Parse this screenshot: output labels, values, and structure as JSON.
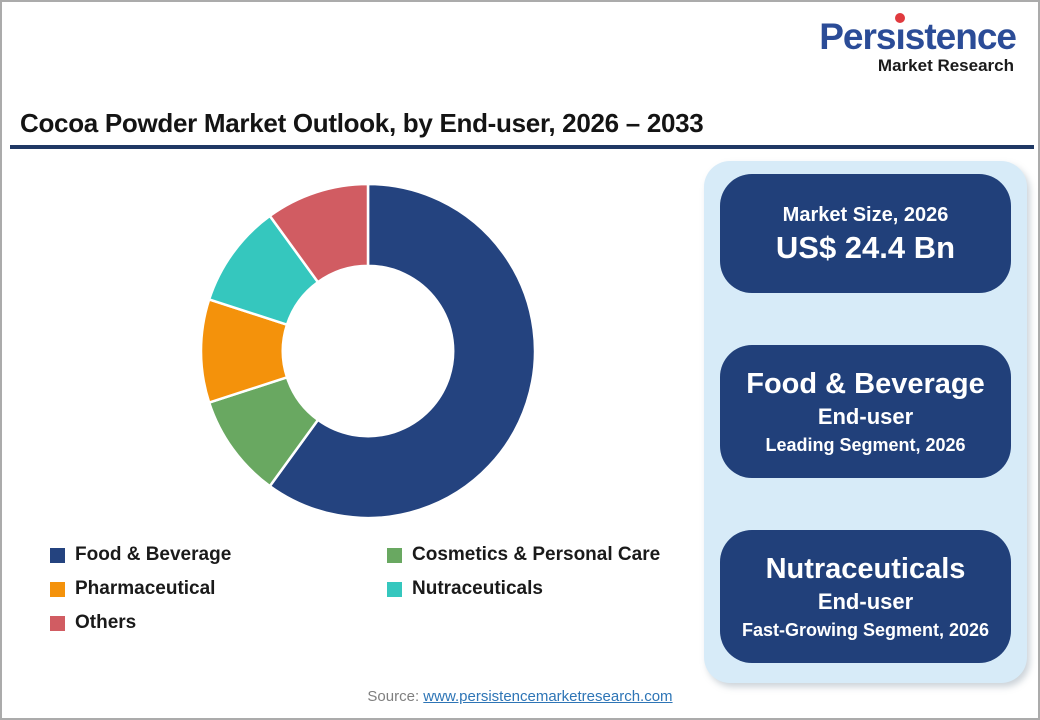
{
  "logo": {
    "name": "Persistence",
    "subtitle": "Market Research",
    "name_color": "#2b4c97",
    "dot_color": "#e03a3e"
  },
  "title": {
    "text": "Cocoa Powder Market Outlook, by End-user, 2026 – 2033",
    "underline_color": "#1f3864"
  },
  "chart_data": {
    "type": "pie",
    "subtype": "donut",
    "title": "Cocoa Powder Market Outlook, by End-user, 2026 – 2033",
    "categories": [
      "Food & Beverage",
      "Cosmetics & Personal Care",
      "Pharmaceutical",
      "Nutraceuticals",
      "Others"
    ],
    "values": [
      60,
      10,
      10,
      10,
      10
    ],
    "values_note": "share of ring estimated from arc angles (%)",
    "colors": [
      "#24437f",
      "#69a861",
      "#f4920b",
      "#35c7be",
      "#d15c62"
    ],
    "start_angle_deg": 0,
    "direction": "clockwise",
    "inner_radius_ratio": 0.51,
    "separator_color": "#ffffff",
    "legend_position": "bottom-left"
  },
  "panel": {
    "bg_color": "#d7ebf8",
    "card_color": "#21407a",
    "cards": [
      {
        "line1": "Market Size, 2026",
        "line2": "US$ 24.4 Bn"
      },
      {
        "line1": "Food & Beverage",
        "line2": "End-user",
        "line3": "Leading Segment, 2026"
      },
      {
        "line1": "Nutraceuticals",
        "line2": "End-user",
        "line3": "Fast-Growing Segment, 2026"
      }
    ]
  },
  "footer": {
    "source_label": "Source:",
    "source_url": "www.persistencemarketresearch.com"
  }
}
